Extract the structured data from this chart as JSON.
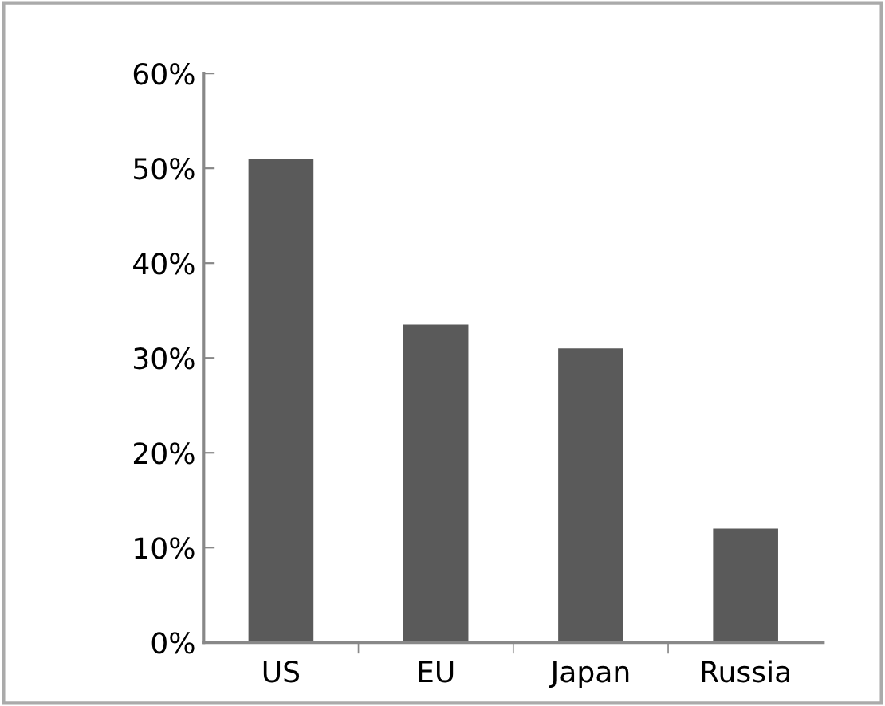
{
  "chart_data": {
    "type": "bar",
    "categories": [
      "US",
      "EU",
      "Japan",
      "Russia"
    ],
    "values": [
      51,
      33.5,
      31,
      12
    ],
    "color": "#5a5a5a",
    "ylim": [
      0,
      60
    ],
    "yticks": [
      {
        "value": 0,
        "label": "0%"
      },
      {
        "value": 10,
        "label": "10%"
      },
      {
        "value": 20,
        "label": "20%"
      },
      {
        "value": 30,
        "label": "30%"
      },
      {
        "value": 40,
        "label": "40%"
      },
      {
        "value": 50,
        "label": "50%"
      },
      {
        "value": 60,
        "label": "60%"
      }
    ],
    "grid": false,
    "legend": false
  }
}
